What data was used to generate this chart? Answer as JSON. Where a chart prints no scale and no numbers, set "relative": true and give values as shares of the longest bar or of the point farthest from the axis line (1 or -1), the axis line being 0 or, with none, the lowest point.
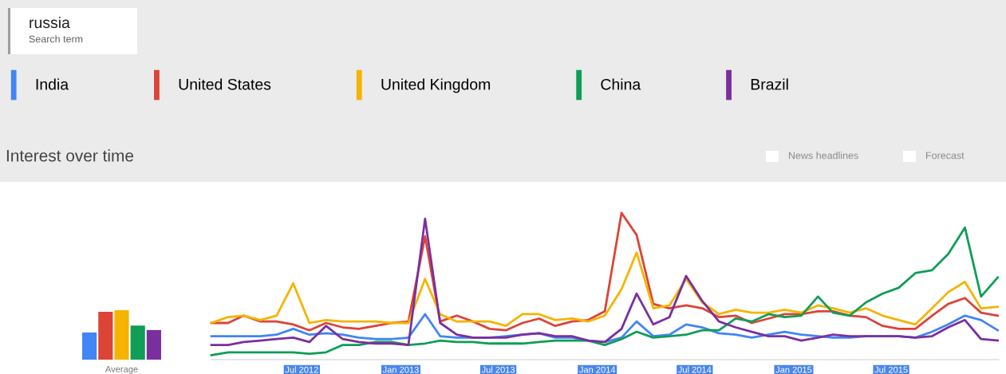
{
  "chart_data": [
    {
      "type": "other",
      "title": "russia",
      "subtitle": "Search term"
    },
    {
      "type": "line",
      "title": "Interest over time",
      "relative": true,
      "legend": "top left",
      "marker": "none",
      "line_style": "solid",
      "annotations": [
        "News headlines",
        "Forecast"
      ],
      "x": [
        "2012-01-15",
        "2012-02-15",
        "2012-03-15",
        "2012-04-15",
        "2012-05-15",
        "2012-06-15",
        "2012-07-15",
        "2012-08-15",
        "2012-09-15",
        "2012-10-15",
        "2012-11-15",
        "2012-12-15",
        "2013-01-15",
        "2013-02-15",
        "2013-03-15",
        "2013-04-15",
        "2013-05-15",
        "2013-06-15",
        "2013-07-15",
        "2013-08-15",
        "2013-09-15",
        "2013-10-15",
        "2013-11-15",
        "2013-12-15",
        "2014-01-15",
        "2014-02-15",
        "2014-03-15",
        "2014-04-15",
        "2014-05-15",
        "2014-06-15",
        "2014-07-15",
        "2014-08-15",
        "2014-09-15",
        "2014-10-15",
        "2014-11-15",
        "2014-12-15",
        "2015-01-15",
        "2015-02-15",
        "2015-03-15",
        "2015-04-15",
        "2015-05-15",
        "2015-06-15",
        "2015-07-15",
        "2015-08-15",
        "2015-09-15",
        "2015-10-15",
        "2015-11-15",
        "2015-12-15",
        "2016-01-15"
      ],
      "xlim": [
        "2012-01-15",
        "2016-01-17"
      ],
      "xticks": [
        {
          "value": "2012-07-01",
          "label": "Jul 2012"
        },
        {
          "value": "2013-01-01",
          "label": "Jan 2013"
        },
        {
          "value": "2013-07-01",
          "label": "Jul 2013"
        },
        {
          "value": "2014-01-01",
          "label": "Jan 2014"
        },
        {
          "value": "2014-07-01",
          "label": "Jul 2014"
        },
        {
          "value": "2015-01-01",
          "label": "Jan 2015"
        },
        {
          "value": "2015-07-01",
          "label": "Jul 2015"
        }
      ],
      "series": [
        {
          "name": "India",
          "color": "#4285f4",
          "values": [
            0.16,
            0.16,
            0.16,
            0.16,
            0.17,
            0.21,
            0.17,
            0.18,
            0.17,
            0.15,
            0.14,
            0.14,
            0.15,
            0.31,
            0.16,
            0.15,
            0.15,
            0.15,
            0.16,
            0.17,
            0.18,
            0.15,
            0.15,
            0.13,
            0.12,
            0.15,
            0.26,
            0.16,
            0.17,
            0.24,
            0.22,
            0.18,
            0.17,
            0.15,
            0.17,
            0.19,
            0.17,
            0.16,
            0.15,
            0.15,
            0.16,
            0.16,
            0.16,
            0.15,
            0.19,
            0.24,
            0.3,
            0.27,
            0.2
          ]
        },
        {
          "name": "United States",
          "color": "#db4437",
          "values": [
            0.25,
            0.25,
            0.3,
            0.26,
            0.26,
            0.24,
            0.2,
            0.25,
            0.22,
            0.21,
            0.23,
            0.25,
            0.26,
            0.84,
            0.26,
            0.3,
            0.26,
            0.21,
            0.2,
            0.25,
            0.28,
            0.23,
            0.26,
            0.27,
            0.33,
            1.0,
            0.85,
            0.38,
            0.35,
            0.37,
            0.35,
            0.29,
            0.3,
            0.25,
            0.28,
            0.31,
            0.31,
            0.33,
            0.33,
            0.3,
            0.29,
            0.23,
            0.21,
            0.21,
            0.3,
            0.38,
            0.42,
            0.32,
            0.3
          ]
        },
        {
          "name": "United Kingdom",
          "color": "#f4b400",
          "values": [
            0.25,
            0.29,
            0.3,
            0.27,
            0.3,
            0.52,
            0.25,
            0.27,
            0.26,
            0.26,
            0.26,
            0.25,
            0.25,
            0.55,
            0.31,
            0.26,
            0.26,
            0.26,
            0.23,
            0.31,
            0.31,
            0.27,
            0.28,
            0.26,
            0.3,
            0.48,
            0.73,
            0.35,
            0.37,
            0.55,
            0.39,
            0.31,
            0.34,
            0.32,
            0.32,
            0.34,
            0.32,
            0.37,
            0.35,
            0.32,
            0.35,
            0.3,
            0.27,
            0.24,
            0.35,
            0.46,
            0.53,
            0.35,
            0.36
          ]
        },
        {
          "name": "China",
          "color": "#0f9d58",
          "values": [
            0.03,
            0.05,
            0.05,
            0.05,
            0.05,
            0.05,
            0.04,
            0.05,
            0.1,
            0.1,
            0.12,
            0.12,
            0.1,
            0.11,
            0.13,
            0.12,
            0.12,
            0.11,
            0.11,
            0.11,
            0.12,
            0.13,
            0.13,
            0.13,
            0.1,
            0.14,
            0.19,
            0.15,
            0.16,
            0.17,
            0.2,
            0.2,
            0.28,
            0.26,
            0.31,
            0.29,
            0.3,
            0.43,
            0.32,
            0.3,
            0.39,
            0.45,
            0.49,
            0.59,
            0.61,
            0.72,
            0.9,
            0.43,
            0.56
          ]
        },
        {
          "name": "Brazil",
          "color": "#7b2f9e",
          "values": [
            0.1,
            0.1,
            0.12,
            0.13,
            0.14,
            0.15,
            0.12,
            0.23,
            0.14,
            0.12,
            0.11,
            0.11,
            0.1,
            0.96,
            0.25,
            0.17,
            0.15,
            0.15,
            0.15,
            0.17,
            0.18,
            0.16,
            0.16,
            0.13,
            0.12,
            0.21,
            0.45,
            0.24,
            0.29,
            0.57,
            0.4,
            0.26,
            0.22,
            0.19,
            0.16,
            0.16,
            0.13,
            0.15,
            0.17,
            0.16,
            0.16,
            0.16,
            0.16,
            0.15,
            0.16,
            0.22,
            0.27,
            0.14,
            0.13
          ]
        }
      ]
    },
    {
      "type": "bar",
      "relative": true,
      "xlabel": "Average",
      "categories": [
        null,
        null,
        null,
        null,
        null
      ],
      "values": [
        0.55,
        0.97,
        1.0,
        0.69,
        0.6
      ],
      "colors": [
        "#4285f4",
        "#db4437",
        "#f4b400",
        "#0f9d58",
        "#7b2f9e"
      ]
    }
  ]
}
